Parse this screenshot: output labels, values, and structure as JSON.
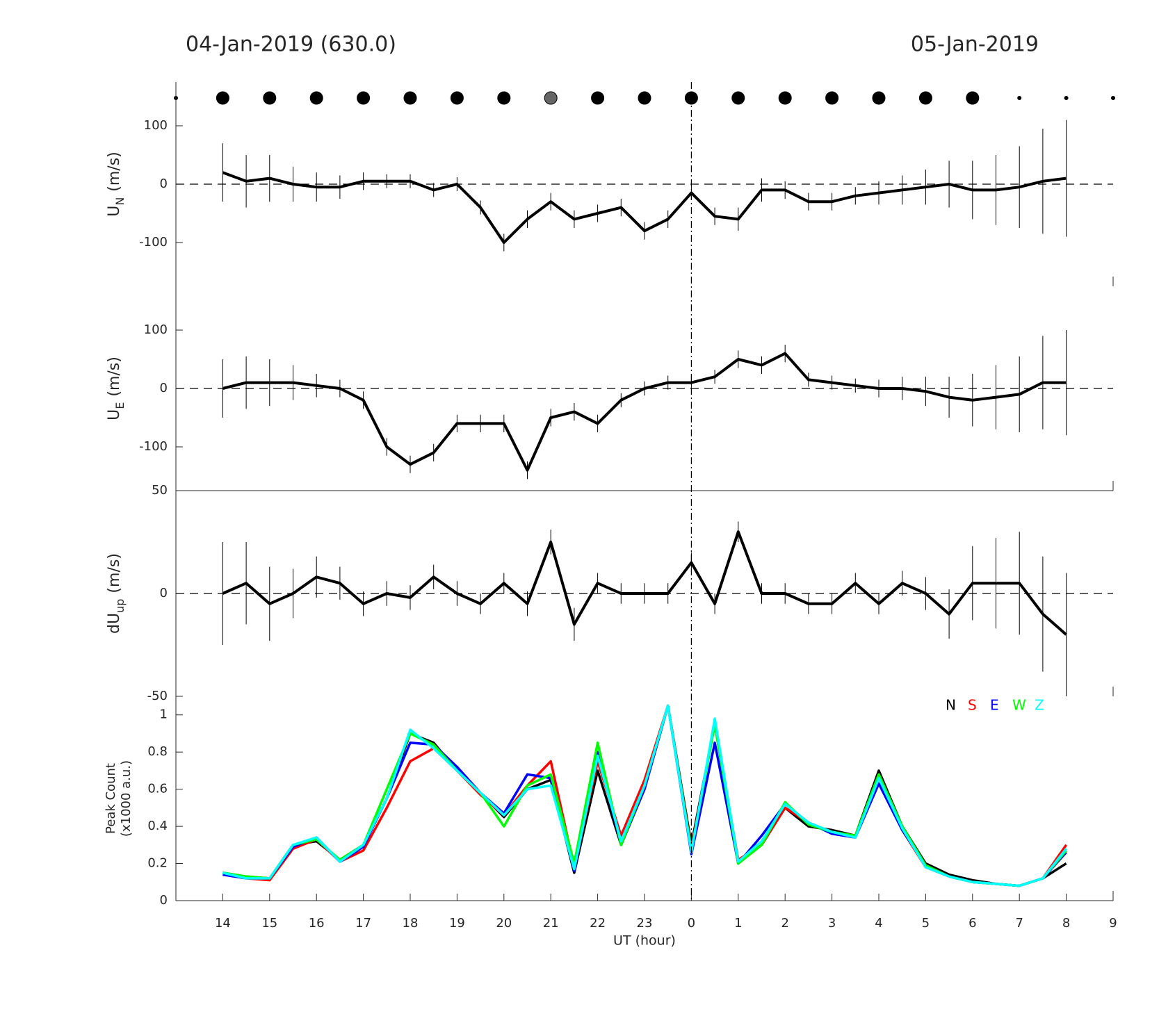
{
  "header": {
    "left": "04-Jan-2019 (630.0)",
    "right": "05-Jan-2019"
  },
  "vline": 24,
  "markers": {
    "x": [
      13,
      14,
      15,
      16,
      17,
      18,
      19,
      20,
      21,
      22,
      23,
      24,
      25,
      26,
      27,
      28,
      29,
      30,
      31,
      32,
      33
    ],
    "size": [
      "small",
      "large",
      "large",
      "large",
      "large",
      "large",
      "large",
      "large",
      "large",
      "large",
      "large",
      "large",
      "large",
      "large",
      "large",
      "large",
      "large",
      "large",
      "small",
      "small",
      "small"
    ],
    "color": [
      "#000000",
      "#000000",
      "#000000",
      "#000000",
      "#000000",
      "#000000",
      "#000000",
      "#000000",
      "#666666",
      "#000000",
      "#000000",
      "#000000",
      "#000000",
      "#000000",
      "#000000",
      "#000000",
      "#000000",
      "#000000",
      "#000000",
      "#000000",
      "#000000"
    ]
  },
  "chart_data": [
    {
      "type": "line",
      "ylabel": {
        "main": "U",
        "sub": "N",
        "unit": "(m/s)"
      },
      "xlim": [
        13,
        33
      ],
      "ylim": [
        -175,
        175
      ],
      "yticks": [
        -100,
        0,
        100
      ],
      "zero_line": true,
      "color": "#000000",
      "x": [
        14,
        14.5,
        15,
        15.5,
        16,
        16.5,
        17,
        17.5,
        18,
        18.5,
        19,
        19.5,
        20,
        20.5,
        21,
        21.5,
        22,
        22.5,
        23,
        23.5,
        24,
        24.5,
        25,
        25.5,
        26,
        26.5,
        27,
        27.5,
        28,
        28.5,
        29,
        29.5,
        30,
        30.5,
        31,
        31.5,
        32
      ],
      "values": [
        20,
        5,
        10,
        0,
        -5,
        -5,
        5,
        5,
        5,
        -10,
        0,
        -40,
        -100,
        -60,
        -30,
        -60,
        -50,
        -40,
        -80,
        -60,
        -15,
        -55,
        -60,
        -10,
        -10,
        -30,
        -30,
        -20,
        -15,
        -10,
        -5,
        0,
        -10,
        -10,
        -5,
        5,
        10
      ],
      "errors": [
        50,
        45,
        40,
        30,
        25,
        20,
        15,
        12,
        12,
        12,
        12,
        12,
        15,
        15,
        15,
        15,
        15,
        15,
        15,
        15,
        12,
        15,
        20,
        20,
        15,
        15,
        15,
        15,
        20,
        25,
        30,
        40,
        50,
        60,
        70,
        90,
        100
      ]
    },
    {
      "type": "line",
      "ylabel": {
        "main": "U",
        "sub": "E",
        "unit": "(m/s)"
      },
      "xlim": [
        13,
        33
      ],
      "ylim": [
        -175,
        175
      ],
      "yticks": [
        -100,
        0,
        100
      ],
      "zero_line": true,
      "color": "#000000",
      "x": [
        14,
        14.5,
        15,
        15.5,
        16,
        16.5,
        17,
        17.5,
        18,
        18.5,
        19,
        19.5,
        20,
        20.5,
        21,
        21.5,
        22,
        22.5,
        23,
        23.5,
        24,
        24.5,
        25,
        25.5,
        26,
        26.5,
        27,
        27.5,
        28,
        28.5,
        29,
        29.5,
        30,
        30.5,
        31,
        31.5,
        32
      ],
      "values": [
        0,
        10,
        10,
        10,
        5,
        0,
        -20,
        -100,
        -130,
        -110,
        -60,
        -60,
        -60,
        -140,
        -50,
        -40,
        -60,
        -20,
        0,
        10,
        10,
        20,
        50,
        40,
        60,
        15,
        10,
        5,
        0,
        0,
        -5,
        -15,
        -20,
        -15,
        -10,
        10,
        10
      ],
      "errors": [
        50,
        45,
        40,
        30,
        20,
        15,
        15,
        15,
        15,
        15,
        15,
        15,
        15,
        15,
        15,
        15,
        15,
        12,
        12,
        12,
        12,
        12,
        15,
        15,
        15,
        12,
        12,
        12,
        15,
        20,
        25,
        35,
        45,
        55,
        65,
        80,
        90
      ]
    },
    {
      "type": "line",
      "ylabel": {
        "main": "dU",
        "sub": "up",
        "unit": "(m/s)"
      },
      "xlim": [
        13,
        33
      ],
      "ylim": [
        -50,
        50
      ],
      "yticks": [
        -50,
        0,
        50
      ],
      "zero_line": true,
      "color": "#000000",
      "x": [
        14,
        14.5,
        15,
        15.5,
        16,
        16.5,
        17,
        17.5,
        18,
        18.5,
        19,
        19.5,
        20,
        20.5,
        21,
        21.5,
        22,
        22.5,
        23,
        23.5,
        24,
        24.5,
        25,
        25.5,
        26,
        26.5,
        27,
        27.5,
        28,
        28.5,
        29,
        29.5,
        30,
        30.5,
        31,
        31.5,
        32
      ],
      "values": [
        0,
        5,
        -5,
        0,
        8,
        5,
        -5,
        0,
        -2,
        8,
        0,
        -5,
        5,
        -5,
        25,
        -15,
        5,
        0,
        0,
        0,
        15,
        -5,
        30,
        0,
        0,
        -5,
        -5,
        5,
        -5,
        5,
        0,
        -10,
        5,
        5,
        5,
        -10,
        -20
      ],
      "errors": [
        25,
        20,
        18,
        12,
        10,
        8,
        6,
        6,
        6,
        6,
        6,
        5,
        5,
        6,
        6,
        8,
        5,
        5,
        5,
        5,
        5,
        5,
        5,
        5,
        5,
        5,
        5,
        5,
        5,
        6,
        8,
        12,
        18,
        22,
        25,
        28,
        30
      ]
    },
    {
      "type": "multiline",
      "ylabel": [
        "Peak Count",
        "(x1000 a.u.)"
      ],
      "xlabel": "UT (hour)",
      "xlim": [
        13,
        33
      ],
      "ylim": [
        0,
        1.1
      ],
      "yticks": [
        0,
        0.2,
        0.4,
        0.6,
        0.8,
        1
      ],
      "xticks": [
        14,
        15,
        16,
        17,
        18,
        19,
        20,
        21,
        22,
        23,
        {
          "value": 24,
          "label": "0"
        },
        {
          "value": 25,
          "label": "1"
        },
        {
          "value": 26,
          "label": "2"
        },
        {
          "value": 27,
          "label": "3"
        },
        {
          "value": 28,
          "label": "4"
        },
        {
          "value": 29,
          "label": "5"
        },
        {
          "value": 30,
          "label": "6"
        },
        {
          "value": 31,
          "label": "7"
        },
        {
          "value": 32,
          "label": "8"
        },
        {
          "value": 33,
          "label": "9"
        }
      ],
      "x": [
        14,
        14.5,
        15,
        15.5,
        16,
        16.5,
        17,
        17.5,
        18,
        18.5,
        19,
        19.5,
        20,
        20.5,
        21,
        21.5,
        22,
        22.5,
        23,
        23.5,
        24,
        24.5,
        25,
        25.5,
        26,
        26.5,
        27,
        27.5,
        28,
        28.5,
        29,
        29.5,
        30,
        30.5,
        31,
        31.5,
        32
      ],
      "series": [
        {
          "name": "N",
          "color": "#000000",
          "values": [
            0.15,
            0.13,
            0.12,
            0.3,
            0.32,
            0.22,
            0.3,
            0.55,
            0.9,
            0.85,
            0.7,
            0.58,
            0.45,
            0.6,
            0.65,
            0.15,
            0.7,
            0.3,
            0.6,
            1.05,
            0.3,
            0.95,
            0.2,
            0.3,
            0.5,
            0.4,
            0.38,
            0.35,
            0.7,
            0.4,
            0.2,
            0.14,
            0.11,
            0.09,
            0.08,
            0.12,
            0.2
          ]
        },
        {
          "name": "S",
          "color": "#ff0000",
          "values": [
            0.15,
            0.12,
            0.11,
            0.28,
            0.33,
            0.21,
            0.27,
            0.5,
            0.75,
            0.82,
            0.7,
            0.57,
            0.46,
            0.62,
            0.75,
            0.18,
            0.75,
            0.35,
            0.65,
            1.05,
            0.28,
            0.95,
            0.22,
            0.3,
            0.5,
            0.42,
            0.37,
            0.35,
            0.66,
            0.38,
            0.18,
            0.13,
            0.1,
            0.09,
            0.08,
            0.12,
            0.3
          ]
        },
        {
          "name": "E",
          "color": "#0000ff",
          "values": [
            0.14,
            0.12,
            0.12,
            0.29,
            0.34,
            0.21,
            0.29,
            0.55,
            0.85,
            0.84,
            0.72,
            0.58,
            0.47,
            0.68,
            0.66,
            0.16,
            0.8,
            0.3,
            0.6,
            1.05,
            0.25,
            0.85,
            0.2,
            0.35,
            0.52,
            0.42,
            0.36,
            0.34,
            0.63,
            0.38,
            0.19,
            0.13,
            0.1,
            0.09,
            0.08,
            0.12,
            0.26
          ]
        },
        {
          "name": "W",
          "color": "#00ff00",
          "values": [
            0.15,
            0.13,
            0.12,
            0.3,
            0.33,
            0.22,
            0.3,
            0.6,
            0.9,
            0.84,
            0.7,
            0.58,
            0.4,
            0.62,
            0.68,
            0.2,
            0.85,
            0.3,
            0.62,
            1.05,
            0.27,
            0.95,
            0.2,
            0.3,
            0.53,
            0.41,
            0.37,
            0.35,
            0.68,
            0.4,
            0.19,
            0.13,
            0.1,
            0.09,
            0.08,
            0.12,
            0.27
          ]
        },
        {
          "name": "Z",
          "color": "#00ffff",
          "values": [
            0.15,
            0.12,
            0.12,
            0.3,
            0.34,
            0.21,
            0.3,
            0.55,
            0.92,
            0.82,
            0.7,
            0.58,
            0.46,
            0.6,
            0.62,
            0.17,
            0.78,
            0.32,
            0.62,
            1.05,
            0.26,
            0.98,
            0.21,
            0.32,
            0.52,
            0.42,
            0.37,
            0.34,
            0.66,
            0.39,
            0.18,
            0.13,
            0.1,
            0.09,
            0.08,
            0.12,
            0.28
          ]
        }
      ]
    }
  ]
}
